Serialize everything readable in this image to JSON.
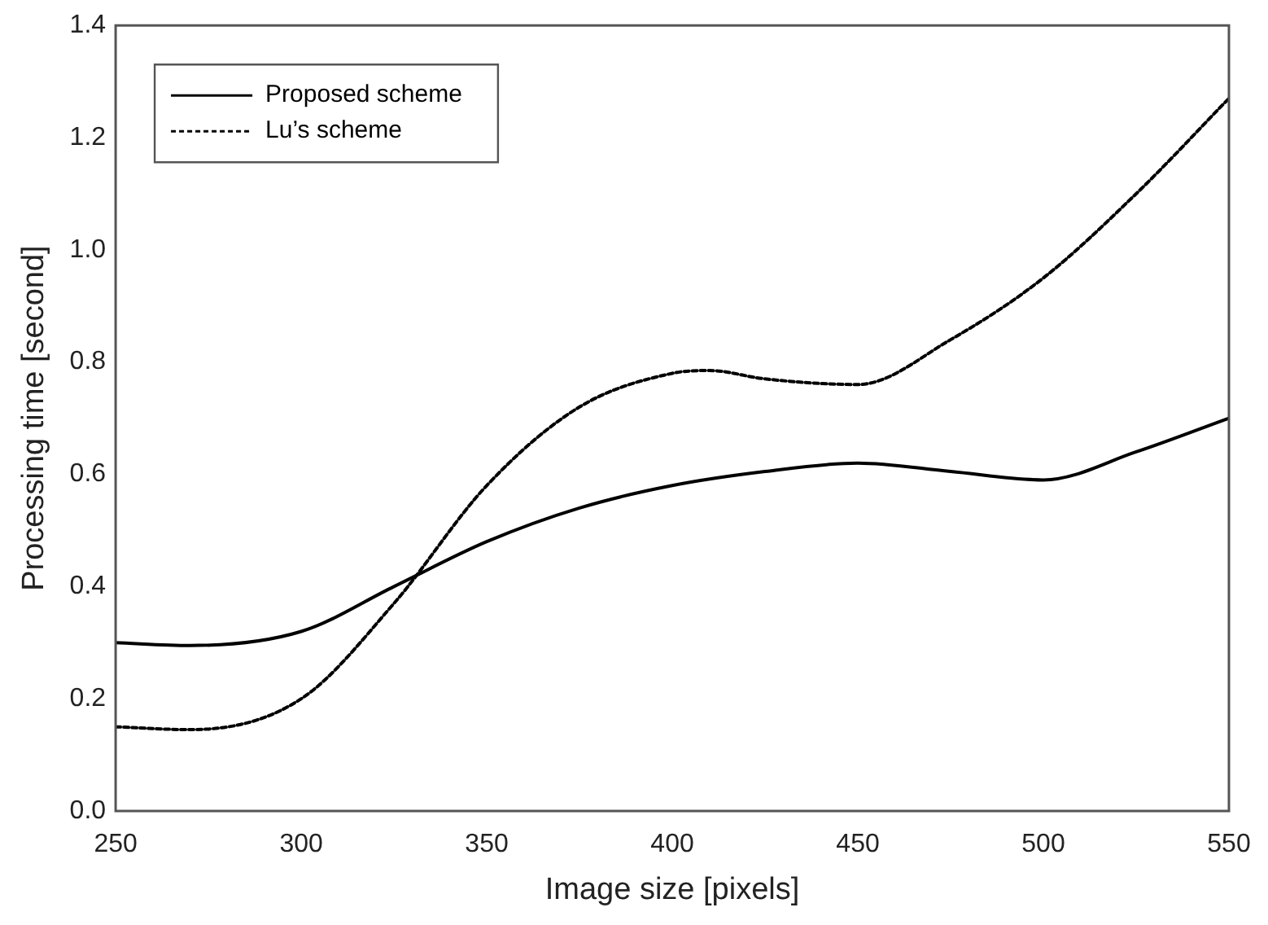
{
  "chart_data": {
    "type": "line",
    "xlabel": "Image size [pixels]",
    "ylabel": "Processing time [second]",
    "xlim": [
      250,
      550
    ],
    "xticks": [
      250,
      300,
      350,
      400,
      450,
      500,
      550
    ],
    "ylim": [
      0,
      1.4
    ],
    "yticks": [
      {
        "value": 0,
        "label": "0.0"
      },
      0.2,
      0.4,
      0.6,
      0.8,
      {
        "value": 1,
        "label": "1.0"
      },
      1.2,
      1.4
    ],
    "grid": false,
    "legend": "top left",
    "marker": "none",
    "series": [
      {
        "name": "Proposed scheme",
        "color": "#000000",
        "line_style": "solid",
        "x": [
          250,
          270,
          300,
          325,
          350,
          375,
          400,
          425,
          450,
          475,
          500,
          525,
          550
        ],
        "values": [
          0.3,
          0.295,
          0.32,
          0.4,
          0.48,
          0.54,
          0.58,
          0.605,
          0.62,
          0.605,
          0.59,
          0.64,
          0.7
        ]
      },
      {
        "name": "Lu’s scheme",
        "color": "#000000",
        "line_style": "dotted",
        "x": [
          250,
          270,
          300,
          325,
          350,
          375,
          400,
          410,
          425,
          450,
          475,
          500,
          525,
          550
        ],
        "values": [
          0.15,
          0.145,
          0.2,
          0.37,
          0.58,
          0.72,
          0.78,
          0.785,
          0.77,
          0.76,
          0.84,
          0.95,
          1.1,
          1.27
        ]
      }
    ]
  }
}
